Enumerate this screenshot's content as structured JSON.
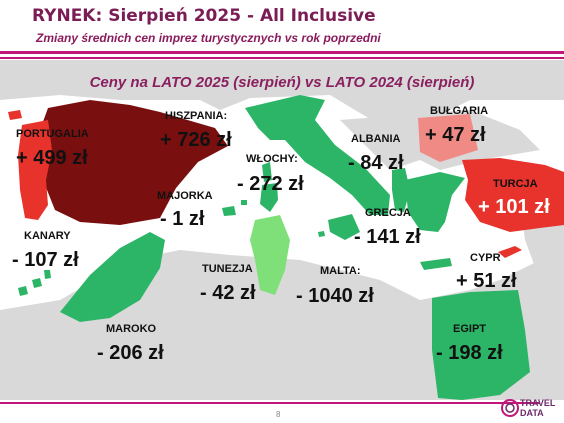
{
  "header": {
    "title": "RYNEK: Sierpień 2025 - All Inclusive",
    "subtitle": "Zmiany średnich cen imprez turystycznych vs rok poprzedni"
  },
  "chart_data": {
    "type": "map",
    "title": "Ceny na LATO 2025 (sierpień) vs  LATO 2024 (sierpień)",
    "colors": {
      "large_increase": "#7a0f0f",
      "increase": "#e8332d",
      "small_increase": "#ef8a85",
      "decrease": "#2db567",
      "small_decrease": "#7fe07a",
      "sea": "#ffffff",
      "land": "#d9d9d9"
    },
    "countries": [
      {
        "name": "PORTUGALIA",
        "value": "+ 499 zł",
        "change": 499
      },
      {
        "name": "HISZPANIA:",
        "value": "+ 726 zł",
        "change": 726
      },
      {
        "name": "MAJORKA",
        "value": "- 1 zł",
        "change": -1
      },
      {
        "name": "WŁOCHY:",
        "value": "- 272 zł",
        "change": -272
      },
      {
        "name": "ALBANIA",
        "value": "- 84 zł",
        "change": -84
      },
      {
        "name": "BUŁGARIA",
        "value": "+ 47 zł",
        "change": 47
      },
      {
        "name": "TURCJA",
        "value": "+ 101 zł",
        "change": 101
      },
      {
        "name": "GRECJA",
        "value": "- 141 zł",
        "change": -141
      },
      {
        "name": "KANARY",
        "value": "- 107 zł",
        "change": -107
      },
      {
        "name": "TUNEZJA",
        "value": "- 42 zł",
        "change": -42
      },
      {
        "name": "MALTA:",
        "value": "- 1040 zł",
        "change": -1040
      },
      {
        "name": "CYPR",
        "value": "+ 51 zł",
        "change": 51
      },
      {
        "name": "MAROKO",
        "value": "- 206 zł",
        "change": -206
      },
      {
        "name": "EGIPT",
        "value": "- 198 zł",
        "change": -198
      }
    ]
  },
  "footer": {
    "page_number": "8",
    "logo_text_1": "TRAVEL",
    "logo_text_2": "DATA"
  }
}
